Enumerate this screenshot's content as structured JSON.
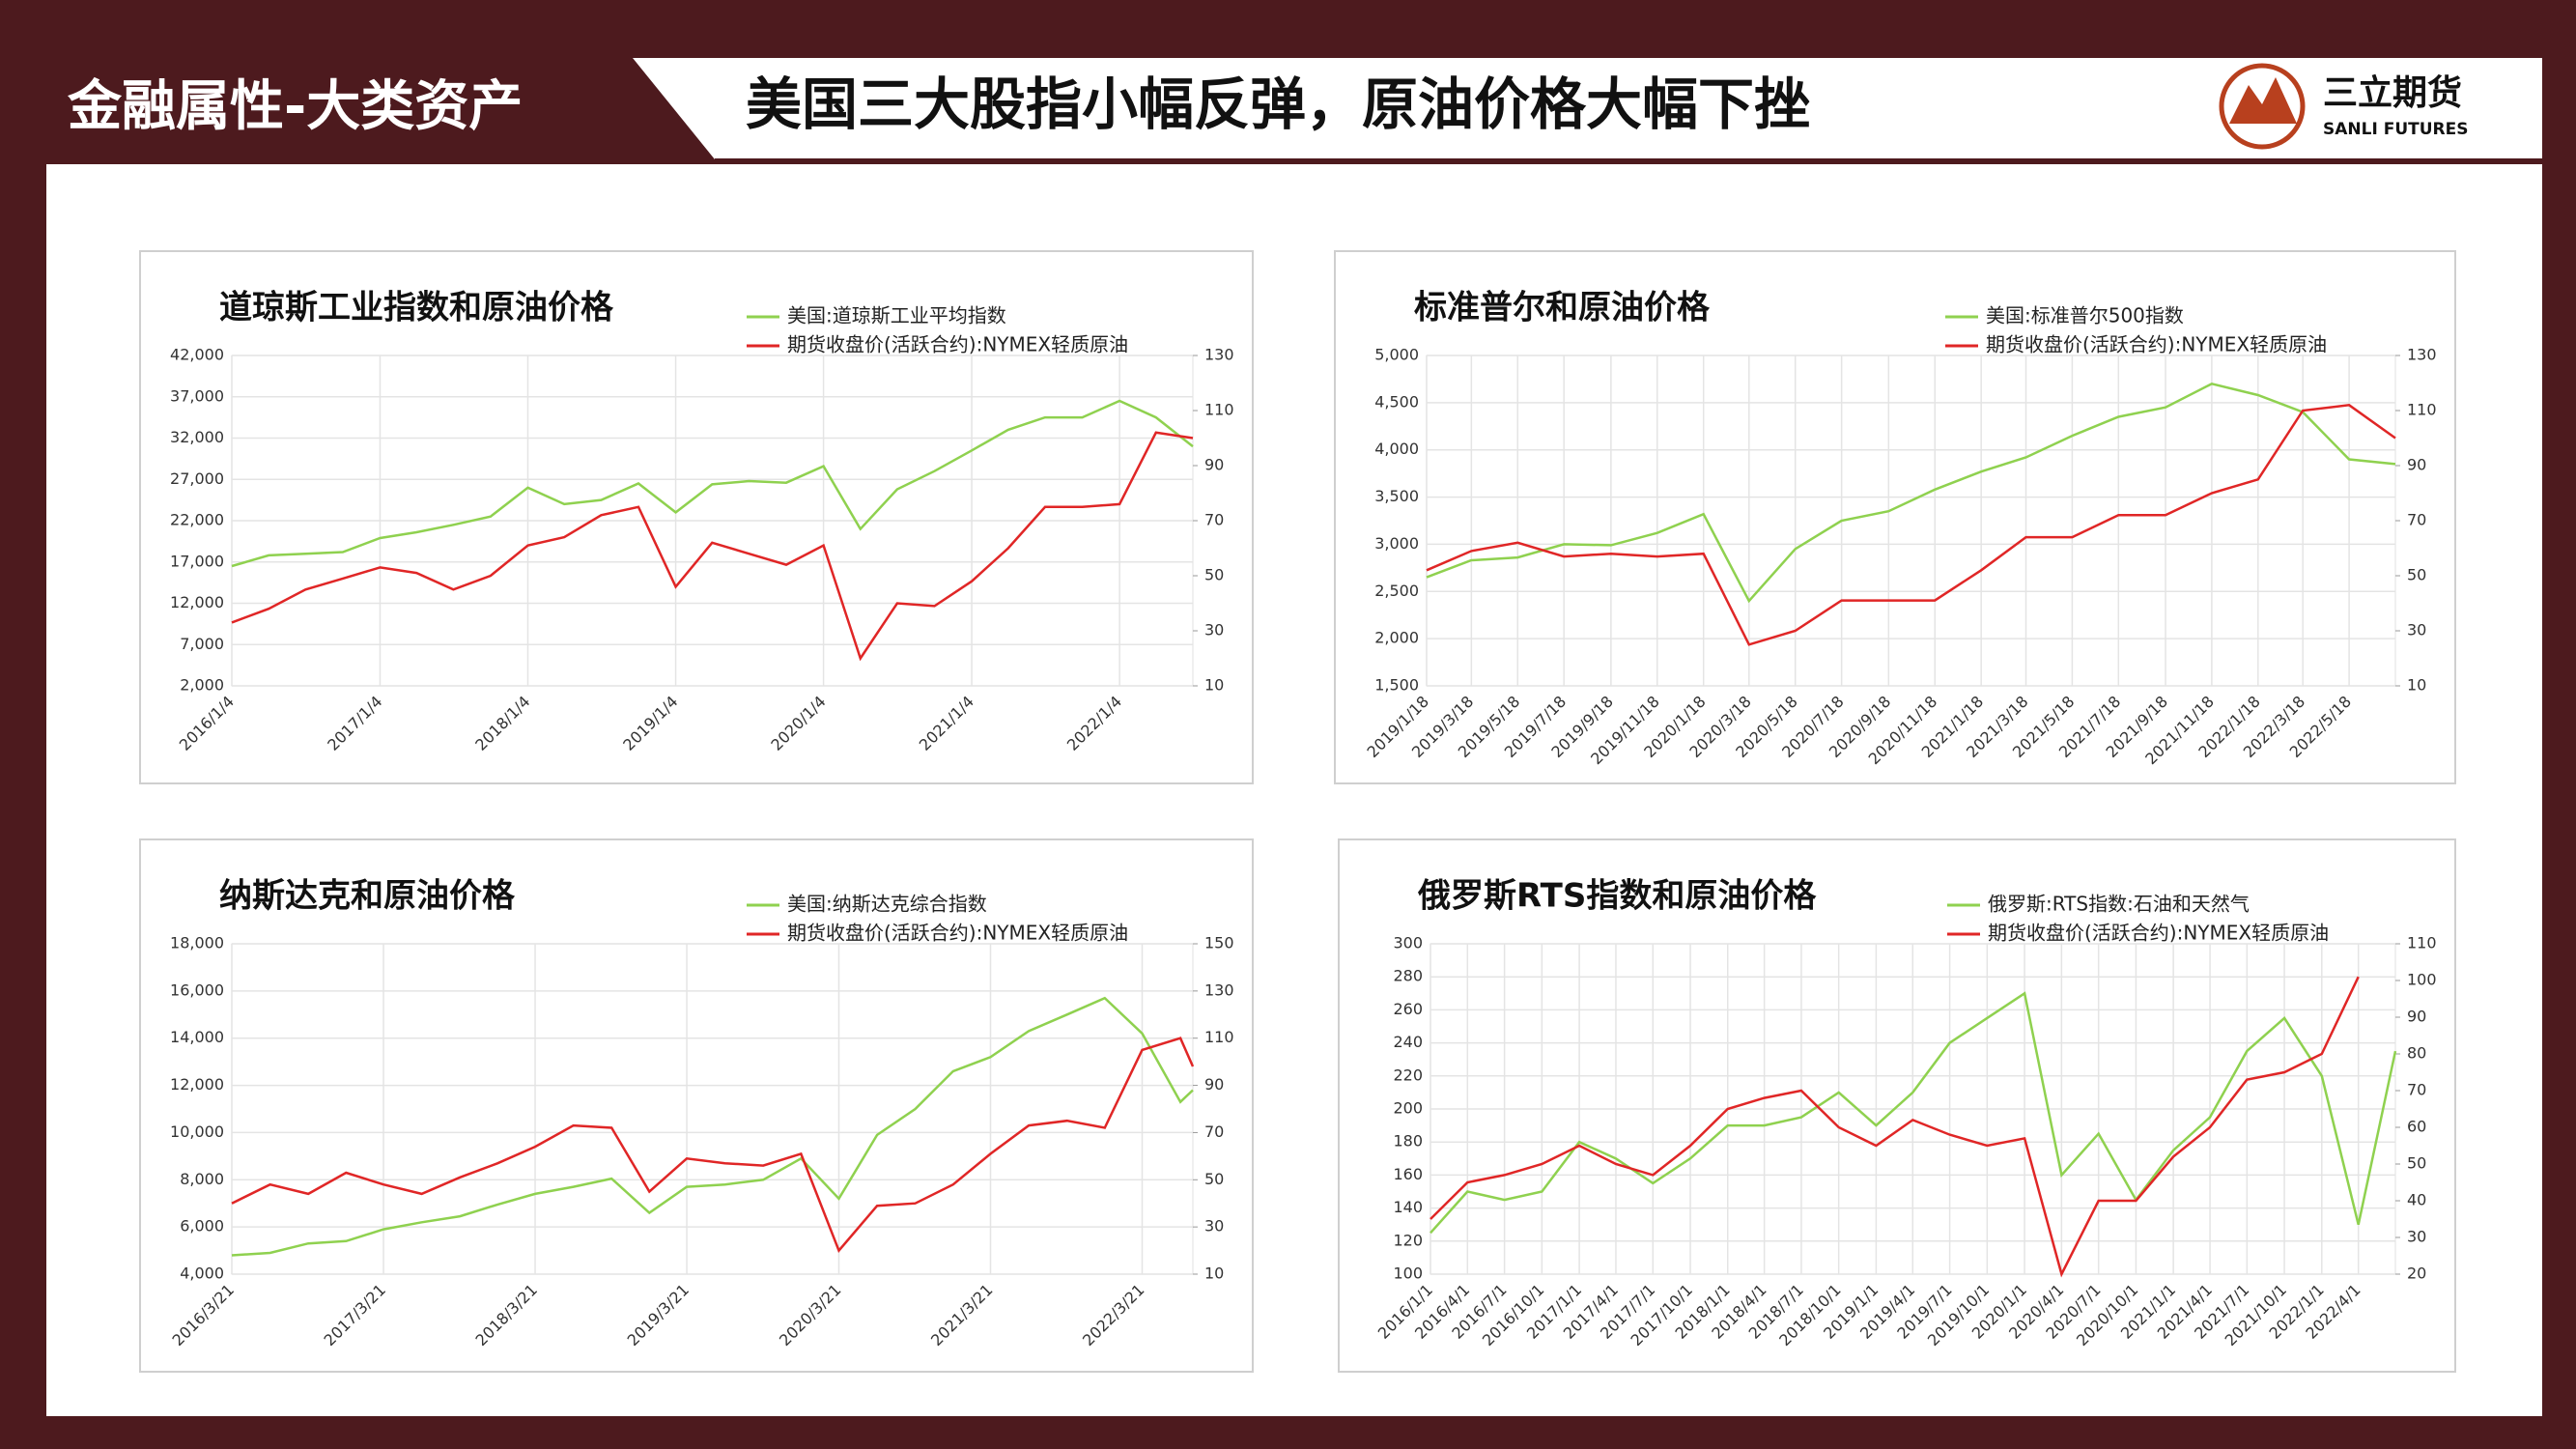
{
  "header": {
    "section": "金融属性-大类资产",
    "title": "美国三大股指小幅反弹，原油价格大幅下挫",
    "logo_cn": "三立期货",
    "logo_en": "SANLI FUTURES"
  },
  "chart_data": [
    {
      "type": "line",
      "title": "道琼斯工业指数和原油价格",
      "x": [
        "2016/1/4",
        "2016/4/4",
        "2016/7/4",
        "2016/10/4",
        "2017/1/4",
        "2017/4/4",
        "2017/7/4",
        "2017/10/4",
        "2018/1/4",
        "2018/4/4",
        "2018/7/4",
        "2018/10/4",
        "2019/1/4",
        "2019/4/4",
        "2019/7/4",
        "2019/10/4",
        "2020/1/4",
        "2020/4/4",
        "2020/7/4",
        "2020/10/4",
        "2021/1/4",
        "2021/4/4",
        "2021/7/4",
        "2021/10/4",
        "2022/1/4",
        "2022/4/4",
        "2022/7/4"
      ],
      "xticks": [
        "2016/1/4",
        "2017/1/4",
        "2018/1/4",
        "2019/1/4",
        "2020/1/4",
        "2021/1/4",
        "2022/1/4"
      ],
      "ylim": [
        2000,
        42000
      ],
      "yticks": [
        {
          "value": 2000,
          "label": "2,000"
        },
        {
          "value": 7000,
          "label": "7,000"
        },
        {
          "value": 12000,
          "label": "12,000"
        },
        {
          "value": 17000,
          "label": "17,000"
        },
        {
          "value": 22000,
          "label": "22,000"
        },
        {
          "value": 27000,
          "label": "27,000"
        },
        {
          "value": 32000,
          "label": "32,000"
        },
        {
          "value": 37000,
          "label": "37,000"
        },
        {
          "value": 42000,
          "label": "42,000"
        }
      ],
      "y2lim": [
        10,
        130
      ],
      "y2ticks": [
        10,
        30,
        50,
        70,
        90,
        110,
        130
      ],
      "series": [
        {
          "name": "美国:道琼斯工业平均指数",
          "color": "#8fd14f",
          "values": [
            16500,
            17800,
            18000,
            18200,
            19900,
            20600,
            21500,
            22500,
            26000,
            24000,
            24500,
            26500,
            23000,
            26400,
            26800,
            26600,
            28600,
            21000,
            25800,
            28000,
            30500,
            33000,
            34500,
            34500,
            36500,
            34500,
            31000
          ]
        },
        {
          "name": "期货收盘价(活跃合约):NYMEX轻质原油",
          "color": "#e02626",
          "axis": "y2",
          "values": [
            33,
            38,
            45,
            49,
            53,
            51,
            45,
            50,
            61,
            64,
            72,
            75,
            46,
            62,
            58,
            54,
            61,
            20,
            40,
            39,
            48,
            60,
            75,
            75,
            76,
            102,
            100
          ]
        }
      ]
    },
    {
      "type": "line",
      "title": "标准普尔和原油价格",
      "x": [
        "2019/1/18",
        "2019/3/18",
        "2019/5/18",
        "2019/7/18",
        "2019/9/18",
        "2019/11/18",
        "2020/1/18",
        "2020/3/18",
        "2020/5/18",
        "2020/7/18",
        "2020/9/18",
        "2020/11/18",
        "2021/1/18",
        "2021/3/18",
        "2021/5/18",
        "2021/7/18",
        "2021/9/18",
        "2021/11/18",
        "2022/1/18",
        "2022/3/18",
        "2022/5/18",
        "2022/7/18"
      ],
      "xticks": [
        "2019/1/18",
        "2019/3/18",
        "2019/5/18",
        "2019/7/18",
        "2019/9/18",
        "2019/11/18",
        "2020/1/18",
        "2020/3/18",
        "2020/5/18",
        "2020/7/18",
        "2020/9/18",
        "2020/11/18",
        "2021/1/18",
        "2021/3/18",
        "2021/5/18",
        "2021/7/18",
        "2021/9/18",
        "2021/11/18",
        "2022/1/18",
        "2022/3/18",
        "2022/5/18"
      ],
      "ylim": [
        1500,
        5000
      ],
      "yticks": [
        {
          "value": 1500,
          "label": "1,500"
        },
        {
          "value": 2000,
          "label": "2,000"
        },
        {
          "value": 2500,
          "label": "2,500"
        },
        {
          "value": 3000,
          "label": "3,000"
        },
        {
          "value": 3500,
          "label": "3,500"
        },
        {
          "value": 4000,
          "label": "4,000"
        },
        {
          "value": 4500,
          "label": "4,500"
        },
        {
          "value": 5000,
          "label": "5,000"
        }
      ],
      "y2lim": [
        10,
        130
      ],
      "y2ticks": [
        10,
        30,
        50,
        70,
        90,
        110,
        130
      ],
      "series": [
        {
          "name": "美国:标准普尔500指数",
          "color": "#8fd14f",
          "values": [
            2650,
            2830,
            2860,
            3000,
            2990,
            3120,
            3320,
            2400,
            2950,
            3250,
            3350,
            3580,
            3770,
            3920,
            4150,
            4350,
            4450,
            4700,
            4580,
            4400,
            3900,
            3850
          ]
        },
        {
          "name": "期货收盘价(活跃合约):NYMEX轻质原油",
          "color": "#e02626",
          "axis": "y2",
          "values": [
            52,
            59,
            62,
            57,
            58,
            57,
            58,
            25,
            30,
            41,
            41,
            41,
            52,
            64,
            64,
            72,
            72,
            80,
            85,
            110,
            112,
            100
          ]
        }
      ]
    },
    {
      "type": "line",
      "title": "纳斯达克和原油价格",
      "x": [
        "2016/3/21",
        "2016/6/21",
        "2016/9/21",
        "2016/12/21",
        "2017/3/21",
        "2017/6/21",
        "2017/9/21",
        "2017/12/21",
        "2018/3/21",
        "2018/6/21",
        "2018/9/21",
        "2018/12/21",
        "2019/3/21",
        "2019/6/21",
        "2019/9/21",
        "2019/12/21",
        "2020/3/21",
        "2020/6/21",
        "2020/9/21",
        "2020/12/21",
        "2021/3/21",
        "2021/6/21",
        "2021/9/21",
        "2021/12/21",
        "2022/3/21",
        "2022/6/21",
        "2022/7/21"
      ],
      "xticks": [
        "2016/3/21",
        "2017/3/21",
        "2018/3/21",
        "2019/3/21",
        "2020/3/21",
        "2021/3/21",
        "2022/3/21"
      ],
      "ylim": [
        4000,
        18000
      ],
      "yticks": [
        {
          "value": 4000,
          "label": "4,000"
        },
        {
          "value": 6000,
          "label": "6,000"
        },
        {
          "value": 8000,
          "label": "8,000"
        },
        {
          "value": 10000,
          "label": "10,000"
        },
        {
          "value": 12000,
          "label": "12,000"
        },
        {
          "value": 14000,
          "label": "14,000"
        },
        {
          "value": 16000,
          "label": "16,000"
        },
        {
          "value": 18000,
          "label": "18,000"
        }
      ],
      "y2lim": [
        10,
        150
      ],
      "y2ticks": [
        10,
        30,
        50,
        70,
        90,
        110,
        130,
        150
      ],
      "series": [
        {
          "name": "美国:纳斯达克综合指数",
          "color": "#8fd14f",
          "values": [
            4800,
            4900,
            5300,
            5400,
            5900,
            6200,
            6450,
            6950,
            7400,
            7700,
            8050,
            6600,
            7700,
            7800,
            8000,
            8900,
            7200,
            9900,
            11000,
            12600,
            13200,
            14300,
            15000,
            15700,
            14200,
            11300,
            11800
          ]
        },
        {
          "name": "期货收盘价(活跃合约):NYMEX轻质原油",
          "color": "#e02626",
          "axis": "y2",
          "values": [
            40,
            48,
            44,
            53,
            48,
            44,
            51,
            57,
            64,
            73,
            72,
            45,
            59,
            57,
            56,
            61,
            20,
            39,
            40,
            48,
            61,
            73,
            75,
            72,
            105,
            110,
            98
          ]
        }
      ]
    },
    {
      "type": "line",
      "title": "俄罗斯RTS指数和原油价格",
      "x": [
        "2016/1/1",
        "2016/4/1",
        "2016/7/1",
        "2016/10/1",
        "2017/1/1",
        "2017/4/1",
        "2017/7/1",
        "2017/10/1",
        "2018/1/1",
        "2018/4/1",
        "2018/7/1",
        "2018/10/1",
        "2019/1/1",
        "2019/4/1",
        "2019/7/1",
        "2019/10/1",
        "2020/1/1",
        "2020/4/1",
        "2020/7/1",
        "2020/10/1",
        "2021/1/1",
        "2021/4/1",
        "2021/7/1",
        "2021/10/1",
        "2022/1/1",
        "2022/4/1",
        "2022/7/1"
      ],
      "xticks": [
        "2016/1/1",
        "2016/4/1",
        "2016/7/1",
        "2016/10/1",
        "2017/1/1",
        "2017/4/1",
        "2017/7/1",
        "2017/10/1",
        "2018/1/1",
        "2018/4/1",
        "2018/7/1",
        "2018/10/1",
        "2019/1/1",
        "2019/4/1",
        "2019/7/1",
        "2019/10/1",
        "2020/1/1",
        "2020/4/1",
        "2020/7/1",
        "2020/10/1",
        "2021/1/1",
        "2021/4/1",
        "2021/7/1",
        "2021/10/1",
        "2022/1/1",
        "2022/4/1"
      ],
      "ylim": [
        100,
        300
      ],
      "yticks": [
        100,
        120,
        140,
        160,
        180,
        200,
        220,
        240,
        260,
        280,
        300
      ],
      "y2lim": [
        20,
        110
      ],
      "y2ticks": [
        20,
        30,
        40,
        50,
        60,
        70,
        80,
        90,
        100,
        110
      ],
      "series": [
        {
          "name": "俄罗斯:RTS指数:石油和天然气",
          "color": "#8fd14f",
          "values": [
            125,
            150,
            145,
            150,
            180,
            170,
            155,
            170,
            190,
            190,
            195,
            210,
            190,
            210,
            240,
            255,
            270,
            160,
            185,
            145,
            175,
            195,
            235,
            255,
            220,
            130,
            235
          ]
        },
        {
          "name": "期货收盘价(活跃合约):NYMEX轻质原油",
          "color": "#e02626",
          "axis": "y2",
          "values": [
            35,
            45,
            47,
            50,
            55,
            50,
            47,
            55,
            65,
            68,
            70,
            60,
            55,
            62,
            58,
            55,
            57,
            20,
            40,
            40,
            52,
            60,
            73,
            75,
            80,
            101,
            null
          ]
        }
      ]
    }
  ]
}
